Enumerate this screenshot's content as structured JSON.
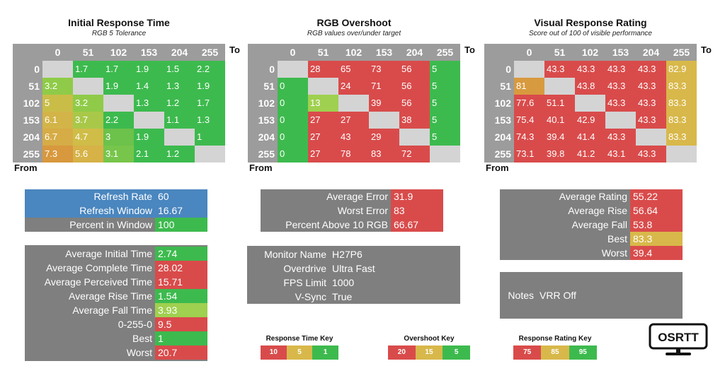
{
  "colors": {
    "green": "#3dba4e",
    "light_green": "#9fd04f",
    "yellow": "#d8b84a",
    "orange": "#d89a3e",
    "red": "#d94b4b",
    "blue": "#4a86bf",
    "gray": "#7f7f7f",
    "header_gray": "#9c9c9c",
    "diag_gray": "#d4d4d4"
  },
  "chart_data": [
    {
      "type": "heatmap",
      "title": "Initial Response Time",
      "subtitle": "RGB 5 Tolerance",
      "xlabel": "To",
      "ylabel": "From",
      "columns": [
        "0",
        "51",
        "102",
        "153",
        "204",
        "255"
      ],
      "rows": [
        "0",
        "51",
        "102",
        "153",
        "204",
        "255"
      ],
      "values": [
        [
          "",
          "1.7",
          "1.7",
          "1.9",
          "1.5",
          "2.2"
        ],
        [
          "3.2",
          "",
          "1.9",
          "1.4",
          "1.3",
          "1.9"
        ],
        [
          "5",
          "3.2",
          "",
          "1.3",
          "1.2",
          "1.7"
        ],
        [
          "6.1",
          "3.7",
          "2.2",
          "",
          "1.1",
          "1.3"
        ],
        [
          "6.7",
          "4.7",
          "3",
          "1.9",
          "",
          "1"
        ],
        [
          "7.3",
          "5.6",
          "3.1",
          "2.1",
          "1.2",
          ""
        ]
      ],
      "cell_colors": [
        [
          "diag",
          "#3dba4e",
          "#3dba4e",
          "#3dba4e",
          "#3dba4e",
          "#3dba4e"
        ],
        [
          "#8fcb48",
          "diag",
          "#3dba4e",
          "#3dba4e",
          "#3dba4e",
          "#3dba4e"
        ],
        [
          "#c9bd48",
          "#8fcb48",
          "diag",
          "#3dba4e",
          "#3dba4e",
          "#3dba4e"
        ],
        [
          "#d3b448",
          "#a9c849",
          "#3dba4e",
          "diag",
          "#3dba4e",
          "#3dba4e"
        ],
        [
          "#d6ac46",
          "#cfbd48",
          "#6cc24b",
          "#3dba4e",
          "diag",
          "#3dba4e"
        ],
        [
          "#d8983e",
          "#d6b247",
          "#77c54b",
          "#3dba4e",
          "#3dba4e",
          "diag"
        ]
      ]
    },
    {
      "type": "heatmap",
      "title": "RGB Overshoot",
      "subtitle": "RGB values over/under target",
      "xlabel": "To",
      "ylabel": "From",
      "columns": [
        "0",
        "51",
        "102",
        "153",
        "204",
        "255"
      ],
      "rows": [
        "0",
        "51",
        "102",
        "153",
        "204",
        "255"
      ],
      "values": [
        [
          "",
          "28",
          "65",
          "73",
          "56",
          "5"
        ],
        [
          "0",
          "",
          "24",
          "71",
          "56",
          "5"
        ],
        [
          "0",
          "13",
          "",
          "39",
          "56",
          "5"
        ],
        [
          "0",
          "27",
          "27",
          "",
          "38",
          "5"
        ],
        [
          "0",
          "27",
          "43",
          "29",
          "",
          "5"
        ],
        [
          "0",
          "27",
          "78",
          "83",
          "72",
          ""
        ]
      ],
      "cell_colors": [
        [
          "diag",
          "#d94b4b",
          "#d94b4b",
          "#d94b4b",
          "#d94b4b",
          "#3dba4e"
        ],
        [
          "#3dba4e",
          "diag",
          "#d94b4b",
          "#d94b4b",
          "#d94b4b",
          "#3dba4e"
        ],
        [
          "#3dba4e",
          "#9fd04f",
          "diag",
          "#d94b4b",
          "#d94b4b",
          "#3dba4e"
        ],
        [
          "#3dba4e",
          "#d94b4b",
          "#d94b4b",
          "diag",
          "#d94b4b",
          "#3dba4e"
        ],
        [
          "#3dba4e",
          "#d94b4b",
          "#d94b4b",
          "#d94b4b",
          "diag",
          "#3dba4e"
        ],
        [
          "#3dba4e",
          "#d94b4b",
          "#d94b4b",
          "#d94b4b",
          "#d94b4b",
          "diag"
        ]
      ]
    },
    {
      "type": "heatmap",
      "title": "Visual Response Rating",
      "subtitle": "Score out of 100 of visible performance",
      "xlabel": "To",
      "ylabel": "From",
      "columns": [
        "0",
        "51",
        "102",
        "153",
        "204",
        "255"
      ],
      "rows": [
        "0",
        "51",
        "102",
        "153",
        "204",
        "255"
      ],
      "values": [
        [
          "",
          "43.3",
          "43.3",
          "43.3",
          "43.3",
          "82.9"
        ],
        [
          "81",
          "",
          "43.8",
          "43.3",
          "43.3",
          "83.3"
        ],
        [
          "77.6",
          "51.1",
          "",
          "43.3",
          "43.3",
          "83.3"
        ],
        [
          "75.4",
          "40.1",
          "42.9",
          "",
          "43.3",
          "83.3"
        ],
        [
          "74.3",
          "39.4",
          "41.4",
          "43.3",
          "",
          "83.3"
        ],
        [
          "73.1",
          "39.8",
          "41.2",
          "43.1",
          "43.3",
          ""
        ]
      ],
      "cell_colors": [
        [
          "diag",
          "#d94b4b",
          "#d94b4b",
          "#d94b4b",
          "#d94b4b",
          "#d8b84a"
        ],
        [
          "#d89a3e",
          "diag",
          "#d94b4b",
          "#d94b4b",
          "#d94b4b",
          "#d8b84a"
        ],
        [
          "#d94b4b",
          "#d94b4b",
          "diag",
          "#d94b4b",
          "#d94b4b",
          "#d8b84a"
        ],
        [
          "#d94b4b",
          "#d94b4b",
          "#d94b4b",
          "diag",
          "#d94b4b",
          "#d8b84a"
        ],
        [
          "#d94b4b",
          "#d94b4b",
          "#d94b4b",
          "#d94b4b",
          "diag",
          "#d8b84a"
        ],
        [
          "#d94b4b",
          "#d94b4b",
          "#d94b4b",
          "#d94b4b",
          "#d94b4b",
          "diag"
        ]
      ]
    }
  ],
  "refresh_box": [
    {
      "label": "Refresh Rate",
      "value": "60",
      "bg": "#4a86bf",
      "val_bg": "#4a86bf"
    },
    {
      "label": "Refresh Window",
      "value": "16.67",
      "bg": "#4a86bf",
      "val_bg": "#4a86bf"
    },
    {
      "label": "Percent in Window",
      "value": "100",
      "bg": "#7f7f7f",
      "val_bg": "#3dba4e"
    }
  ],
  "response_stats": [
    {
      "label": "Average Initial Time",
      "value": "2.74",
      "val_bg": "#3dba4e"
    },
    {
      "label": "Average Complete Time",
      "value": "28.02",
      "val_bg": "#d94b4b"
    },
    {
      "label": "Average Perceived Time",
      "value": "15.71",
      "val_bg": "#d94b4b"
    },
    {
      "label": "Average Rise Time",
      "value": "1.54",
      "val_bg": "#3dba4e"
    },
    {
      "label": "Average Fall Time",
      "value": "3.93",
      "val_bg": "#9fd04f"
    },
    {
      "label": "0-255-0",
      "value": "9.5",
      "val_bg": "#d94b4b"
    },
    {
      "label": "Best",
      "value": "1",
      "val_bg": "#3dba4e"
    },
    {
      "label": "Worst",
      "value": "20.7",
      "val_bg": "#d94b4b"
    }
  ],
  "overshoot_stats": [
    {
      "label": "Average Error",
      "value": "31.9",
      "val_bg": "#d94b4b"
    },
    {
      "label": "Worst Error",
      "value": "83",
      "val_bg": "#d94b4b"
    },
    {
      "label": "Percent Above 10 RGB",
      "value": "66.67",
      "val_bg": "#d94b4b"
    }
  ],
  "monitor_info": [
    {
      "label": "Monitor Name",
      "value": "H27P6"
    },
    {
      "label": "Overdrive",
      "value": "Ultra Fast"
    },
    {
      "label": "FPS Limit",
      "value": "1000"
    },
    {
      "label": "V-Sync",
      "value": "True"
    }
  ],
  "rating_stats": [
    {
      "label": "Average Rating",
      "value": "55.22",
      "val_bg": "#d94b4b"
    },
    {
      "label": "Average Rise",
      "value": "56.64",
      "val_bg": "#d94b4b"
    },
    {
      "label": "Average Fall",
      "value": "53.8",
      "val_bg": "#d94b4b"
    },
    {
      "label": "Best",
      "value": "83.3",
      "val_bg": "#d8b84a"
    },
    {
      "label": "Worst",
      "value": "39.4",
      "val_bg": "#d94b4b"
    }
  ],
  "notes": {
    "label": "Notes",
    "value": "VRR Off"
  },
  "keys": [
    {
      "title": "Response Time Key",
      "items": [
        {
          "value": "10",
          "color": "#d94b4b"
        },
        {
          "value": "5",
          "color": "#d8b84a"
        },
        {
          "value": "1",
          "color": "#3dba4e"
        }
      ]
    },
    {
      "title": "Overshoot Key",
      "items": [
        {
          "value": "20",
          "color": "#d94b4b"
        },
        {
          "value": "15",
          "color": "#d8b84a"
        },
        {
          "value": "5",
          "color": "#3dba4e"
        }
      ]
    },
    {
      "title": "Response Rating Key",
      "items": [
        {
          "value": "75",
          "color": "#d94b4b"
        },
        {
          "value": "85",
          "color": "#d8b84a"
        },
        {
          "value": "95",
          "color": "#3dba4e"
        }
      ]
    }
  ],
  "logo": {
    "text": "OSRTT"
  }
}
